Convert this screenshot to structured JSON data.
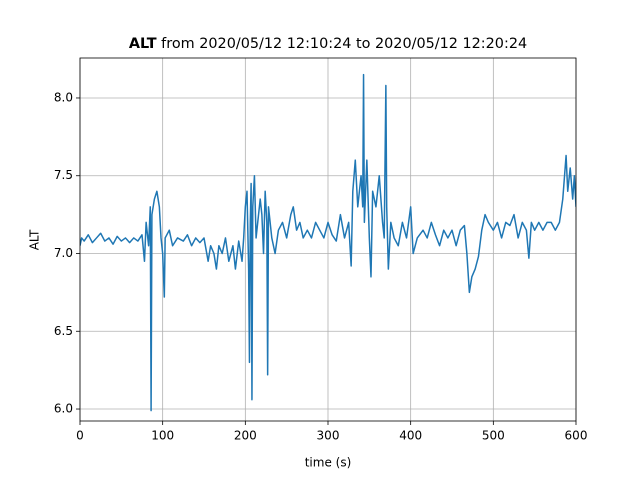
{
  "chart_data": {
    "type": "line",
    "title_bold": "ALT",
    "title": "from 2020/05/12 12:10:24 to 2020/05/12 12:20:24",
    "xlabel": "time (s)",
    "ylabel": "ALT",
    "xlim": [
      0,
      600
    ],
    "xticks": [
      0,
      100,
      200,
      300,
      400,
      500,
      600
    ],
    "ylim": [
      5.923,
      8.257
    ],
    "yticks": [
      {
        "value": 6,
        "label": "6.0"
      },
      6.5,
      {
        "value": 7,
        "label": "7.0"
      },
      7.5,
      {
        "value": 8,
        "label": "8.0"
      }
    ],
    "grid": true,
    "series": [
      {
        "name": "ALT",
        "color": "#1f77b4",
        "x": [
          0,
          2,
          5,
          10,
          15,
          20,
          25,
          30,
          35,
          40,
          45,
          50,
          55,
          60,
          65,
          70,
          75,
          78,
          80,
          83,
          85,
          86,
          87,
          90,
          93,
          96,
          98,
          100,
          102,
          103,
          108,
          112,
          118,
          125,
          130,
          135,
          140,
          145,
          150,
          155,
          158,
          162,
          165,
          168,
          172,
          176,
          180,
          185,
          188,
          192,
          196,
          198,
          200,
          202,
          204,
          205,
          206,
          207,
          208,
          209,
          211,
          213,
          215,
          218,
          220,
          222,
          224,
          226,
          227,
          228,
          232,
          236,
          240,
          245,
          250,
          255,
          258,
          262,
          266,
          270,
          275,
          280,
          285,
          290,
          295,
          300,
          305,
          310,
          315,
          320,
          325,
          328,
          330,
          333,
          336,
          340,
          342,
          343,
          344,
          347,
          350,
          352,
          354,
          358,
          362,
          366,
          368,
          370,
          371,
          373,
          376,
          380,
          385,
          390,
          395,
          400,
          403,
          408,
          415,
          420,
          425,
          430,
          435,
          440,
          445,
          450,
          455,
          460,
          465,
          468,
          471,
          474,
          478,
          482,
          486,
          490,
          494,
          500,
          505,
          510,
          515,
          520,
          525,
          530,
          535,
          540,
          543,
          546,
          550,
          555,
          560,
          565,
          570,
          575,
          580,
          584,
          588,
          590,
          593,
          596,
          598,
          600
        ],
        "values": [
          7.05,
          7.1,
          7.08,
          7.12,
          7.07,
          7.1,
          7.13,
          7.08,
          7.1,
          7.06,
          7.11,
          7.08,
          7.1,
          7.07,
          7.1,
          7.08,
          7.12,
          6.95,
          7.2,
          7.05,
          7.3,
          5.99,
          7.25,
          7.35,
          7.4,
          7.3,
          7.1,
          7.0,
          6.72,
          7.1,
          7.15,
          7.05,
          7.1,
          7.08,
          7.12,
          7.05,
          7.1,
          7.07,
          7.1,
          6.95,
          7.05,
          7.0,
          6.9,
          7.05,
          7.0,
          7.1,
          6.95,
          7.05,
          6.9,
          7.08,
          6.95,
          7.1,
          7.3,
          7.4,
          6.9,
          6.3,
          7.2,
          7.45,
          6.06,
          7.3,
          7.5,
          7.1,
          7.2,
          7.35,
          7.25,
          7.0,
          7.4,
          7.2,
          6.22,
          7.3,
          7.1,
          7.0,
          7.15,
          7.2,
          7.1,
          7.25,
          7.3,
          7.15,
          7.2,
          7.1,
          7.15,
          7.1,
          7.2,
          7.15,
          7.1,
          7.2,
          7.12,
          7.08,
          7.25,
          7.1,
          7.2,
          6.92,
          7.4,
          7.6,
          7.3,
          7.5,
          7.3,
          8.15,
          7.2,
          7.6,
          7.1,
          6.85,
          7.4,
          7.3,
          7.5,
          7.2,
          7.1,
          8.08,
          7.3,
          6.9,
          7.2,
          7.1,
          7.05,
          7.2,
          7.1,
          7.3,
          7.0,
          7.1,
          7.15,
          7.1,
          7.2,
          7.12,
          7.05,
          7.15,
          7.1,
          7.15,
          7.05,
          7.15,
          7.18,
          7.0,
          6.75,
          6.85,
          6.9,
          6.98,
          7.15,
          7.25,
          7.2,
          7.15,
          7.2,
          7.1,
          7.2,
          7.18,
          7.25,
          7.1,
          7.2,
          7.15,
          6.97,
          7.2,
          7.15,
          7.2,
          7.15,
          7.2,
          7.2,
          7.15,
          7.2,
          7.35,
          7.63,
          7.4,
          7.55,
          7.35,
          7.5,
          7.3
        ]
      }
    ]
  }
}
